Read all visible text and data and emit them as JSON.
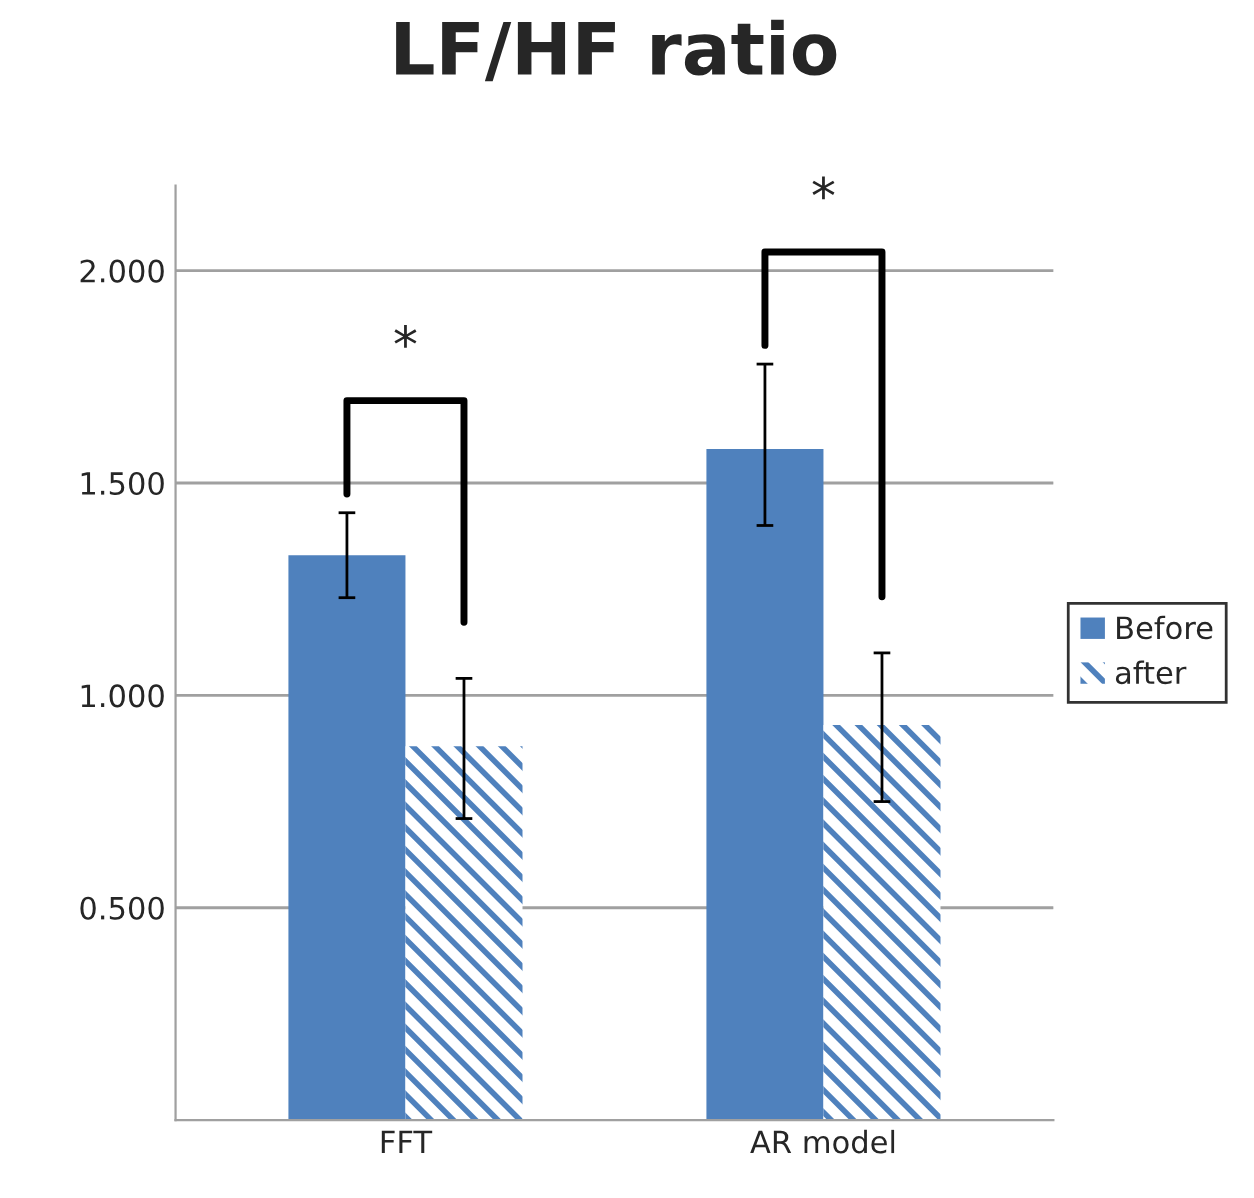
{
  "chart_data": {
    "type": "bar",
    "title": "LF/HF ratio",
    "categories": [
      "FFT",
      "AR model"
    ],
    "series": [
      {
        "name": "Before",
        "color": "#4f81bd",
        "values": [
          1.33,
          1.58
        ],
        "errors": [
          [
            1.23,
            1.43
          ],
          [
            1.4,
            1.78
          ]
        ]
      },
      {
        "name": "after",
        "color": "#4f81bd",
        "values": [
          0.88,
          0.93
        ],
        "errors": [
          [
            0.71,
            1.04
          ],
          [
            0.75,
            1.1
          ]
        ]
      }
    ],
    "ylim": [
      0,
      2.2
    ],
    "yticks": [
      {
        "value": 0.5,
        "label": "0.500"
      },
      {
        "value": 1.0,
        "label": "1.000"
      },
      {
        "value": 1.5,
        "label": "1.500"
      },
      {
        "value": 2.0,
        "label": "2.000"
      }
    ],
    "grid": "y",
    "legend": "right",
    "annotations": [
      "*",
      "*"
    ]
  }
}
